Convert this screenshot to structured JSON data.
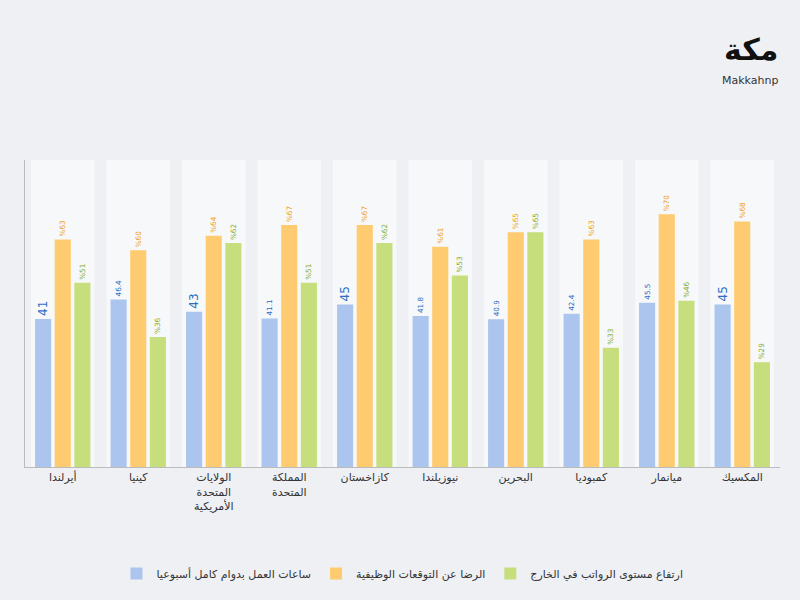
{
  "chart_data": {
    "type": "bar",
    "categories": [
      "أيرلندا",
      "كينيا",
      "الولايات المتحدة الأمريكية",
      "المملكة المتحدة",
      "كازاخستان",
      "نيوزيلندا",
      "البحرين",
      "كمبوديا",
      "ميانمار",
      "المكسيك"
    ],
    "series": [
      {
        "name": "ساعات العمل بدوام كامل أسبوعيا",
        "color": "#abc5ee",
        "values": [
          41,
          46.4,
          43,
          41.1,
          45,
          41.8,
          40.9,
          42.4,
          45.5,
          45
        ]
      },
      {
        "name": "الرضا عن التوقعات الوظيفية",
        "color": "#ffcb70",
        "values": [
          63,
          60,
          64,
          67,
          67,
          61,
          65,
          63,
          70,
          68
        ],
        "value_labels": [
          "%63",
          "%60",
          "%64",
          "%67",
          "%67",
          "%61",
          "%65",
          "%63",
          "%70",
          "%68"
        ]
      },
      {
        "name": "ارتفاع مستوى الرواتب في الخارج",
        "color": "#c6de7c",
        "values": [
          51,
          36,
          62,
          51,
          62,
          53,
          65,
          33,
          46,
          29
        ],
        "value_labels": [
          "%51",
          "%36",
          "%62",
          "%51",
          "%62",
          "%53",
          "%65",
          "%33",
          "%46",
          "%29"
        ]
      }
    ],
    "ylim": [
      0,
      85
    ],
    "yticks": [],
    "grid": false,
    "tick_labels": "x",
    "data_labels": true,
    "legend": "bottom",
    "annotations": [
      "مكة",
      "Makkahnp"
    ]
  }
}
